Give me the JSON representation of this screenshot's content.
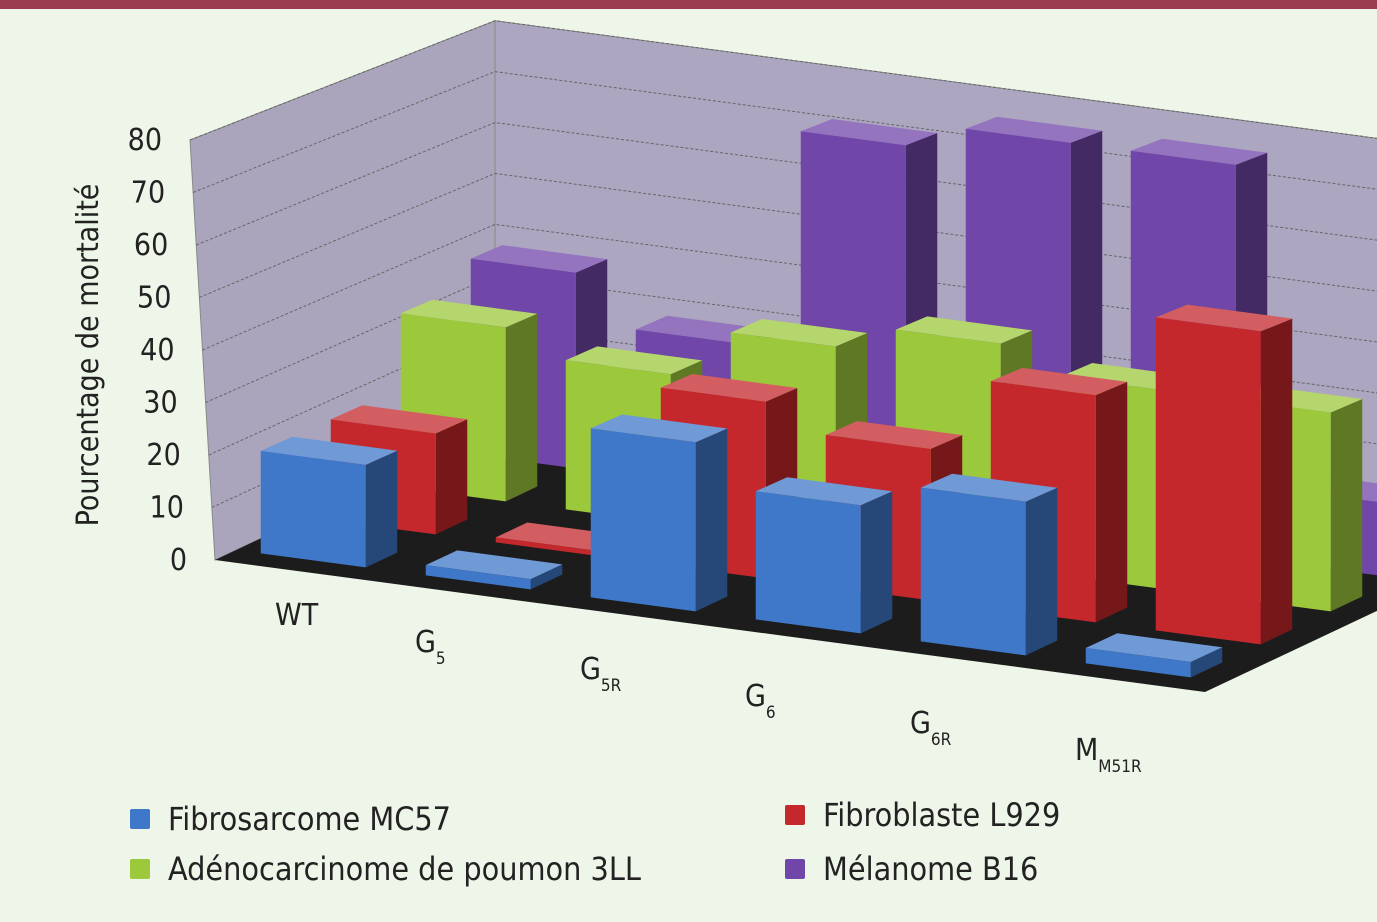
{
  "chart_data": {
    "type": "bar",
    "title": "",
    "xlabel": "",
    "ylabel": "Pourcentage de mortalité",
    "ylim": [
      0,
      80
    ],
    "yticks": [
      "0",
      "10",
      "20",
      "30",
      "40",
      "50",
      "60",
      "70",
      "80"
    ],
    "categories": [
      {
        "main": "WT",
        "sub": ""
      },
      {
        "main": "G",
        "sub": "5"
      },
      {
        "main": "G",
        "sub": "5R"
      },
      {
        "main": "G",
        "sub": "6"
      },
      {
        "main": "G",
        "sub": "6R"
      },
      {
        "main": "M",
        "sub": "M51R"
      }
    ],
    "series": [
      {
        "name": "Fibrosarcome MC57",
        "color": "#3f78c8",
        "values": [
          20,
          2,
          33,
          25,
          30,
          3
        ]
      },
      {
        "name": "Fibroblaste L929",
        "color": "#c4282c",
        "values": [
          20,
          1,
          35,
          30,
          45,
          62
        ]
      },
      {
        "name": "Adénocarcinome de poumon 3LL",
        "color": "#9cc83c",
        "values": [
          35,
          30,
          40,
          45,
          40,
          40
        ]
      },
      {
        "name": "Mélanome B16",
        "color": "#7046a8",
        "values": [
          40,
          30,
          75,
          80,
          80,
          15
        ]
      }
    ],
    "legend": "bottom",
    "grid": true
  }
}
